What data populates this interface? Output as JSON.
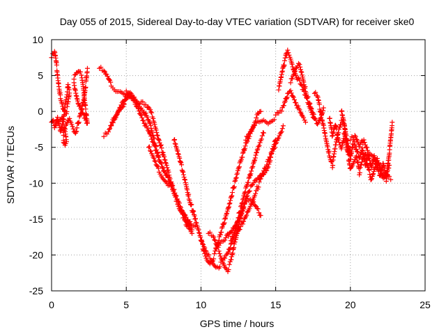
{
  "chart_data": {
    "type": "scatter",
    "title": "Day 055 of 2015, Sidereal Day-to-day VTEC variation (SDTVAR) for receiver ske0",
    "xlabel": "GPS time / hours",
    "ylabel": "SDTVAR / TECUs",
    "xlim": [
      0,
      25
    ],
    "ylim": [
      -25,
      10
    ],
    "xticks": [
      0,
      5,
      10,
      15,
      20,
      25
    ],
    "yticks": [
      -25,
      -20,
      -15,
      -10,
      -5,
      0,
      5,
      10
    ],
    "grid": true,
    "marker": "+",
    "colors": {
      "points": "#ff0000",
      "grid": "#a0a0a0",
      "frame": "#000000"
    },
    "series": [
      {
        "name": "s1",
        "x": [
          0.0,
          0.2,
          0.3,
          0.4,
          0.6,
          0.8,
          1.0,
          1.1,
          1.2,
          1.1,
          1.0,
          0.9,
          0.8,
          0.7,
          0.6,
          0.5,
          0.4,
          0.3,
          0.2,
          0.1,
          0.0
        ],
        "y": [
          7.5,
          8.2,
          7.0,
          5.0,
          2.0,
          0.5,
          0.0,
          1.0,
          2.5,
          3.5,
          2.0,
          1.0,
          -1.0,
          -2.0,
          -3.0,
          -2.0,
          -1.0,
          -1.5,
          -2.0,
          -1.0,
          -1.5
        ]
      },
      {
        "name": "s2",
        "x": [
          0.3,
          0.5,
          0.7,
          0.9,
          1.0,
          0.9,
          0.8,
          0.8,
          0.9,
          1.0,
          1.2,
          1.4,
          1.6,
          1.8,
          2.0,
          2.2,
          2.3,
          2.4
        ],
        "y": [
          -2.0,
          -1.5,
          -1.0,
          -2.5,
          -4.0,
          -4.5,
          -4.0,
          -3.0,
          -2.5,
          -2.0,
          -1.0,
          -2.0,
          -3.0,
          -1.5,
          0.0,
          2.0,
          4.0,
          6.0
        ]
      },
      {
        "name": "s3",
        "x": [
          1.5,
          1.6,
          1.8,
          2.0,
          2.1,
          2.2,
          2.3,
          2.4,
          2.2,
          2.0,
          1.8,
          1.6,
          1.5
        ],
        "y": [
          4.5,
          5.0,
          5.5,
          5.0,
          4.0,
          2.0,
          0.0,
          -2.0,
          -1.0,
          0.0,
          1.0,
          3.0,
          4.0
        ]
      },
      {
        "name": "s4",
        "x": [
          3.2,
          3.5,
          3.8,
          4.0,
          4.3,
          4.5,
          4.8,
          5.0,
          5.2,
          5.4,
          5.6,
          5.8,
          6.0,
          6.2,
          6.4,
          6.6,
          6.8,
          7.0,
          7.2,
          7.4,
          7.6,
          7.8,
          8.0,
          8.2,
          8.4,
          8.6,
          8.8,
          9.0,
          9.2,
          9.4
        ],
        "y": [
          6.0,
          5.5,
          4.5,
          3.5,
          3.0,
          3.0,
          2.8,
          2.5,
          2.0,
          1.5,
          1.0,
          0.5,
          -0.5,
          -1.5,
          -2.5,
          -3.5,
          -4.5,
          -5.5,
          -6.5,
          -7.5,
          -8.5,
          -9.5,
          -10.5,
          -11.5,
          -12.5,
          -13.5,
          -14.5,
          -15.5,
          -16.5,
          -17.0
        ]
      },
      {
        "name": "s5",
        "x": [
          3.5,
          3.8,
          4.0,
          4.2,
          4.4,
          4.6,
          4.8,
          5.0,
          5.2,
          5.4,
          5.6,
          5.8,
          6.0,
          6.2,
          6.4,
          6.6,
          6.8,
          7.0,
          7.2,
          7.4,
          7.6,
          7.8,
          8.0,
          8.2,
          8.4,
          8.6,
          8.8,
          9.0,
          9.2,
          9.4
        ],
        "y": [
          -3.5,
          -3.0,
          -2.0,
          -1.0,
          0.0,
          0.5,
          1.0,
          2.0,
          2.5,
          2.0,
          1.5,
          1.0,
          0.5,
          0.0,
          -1.0,
          -2.0,
          -3.5,
          -5.0,
          -6.5,
          -7.5,
          -8.5,
          -9.5,
          -10.5,
          -11.5,
          -12.5,
          -13.5,
          -14.0,
          -15.0,
          -16.0,
          -16.5
        ]
      },
      {
        "name": "s6",
        "x": [
          4.0,
          4.3,
          4.6,
          4.9,
          5.2,
          5.5,
          5.8,
          6.1,
          6.4,
          6.6,
          6.8,
          7.0,
          7.2,
          7.4,
          7.6,
          7.8,
          8.0,
          8.2,
          8.4,
          8.6,
          8.8,
          9.0,
          9.2,
          9.4,
          9.6
        ],
        "y": [
          -2.0,
          -1.0,
          0.5,
          1.5,
          2.5,
          2.0,
          1.5,
          1.0,
          0.5,
          0.0,
          -1.0,
          -2.5,
          -4.0,
          -5.5,
          -7.0,
          -8.5,
          -10.0,
          -11.0,
          -12.0,
          -13.0,
          -14.0,
          -15.0,
          -15.5,
          -16.0,
          -16.0
        ]
      },
      {
        "name": "s7",
        "x": [
          6.5,
          6.8,
          7.0,
          7.2,
          7.4,
          7.6,
          7.8,
          8.0
        ],
        "y": [
          -5.0,
          -6.5,
          -7.5,
          -8.5,
          -9.0,
          -9.5,
          -10.0,
          -10.0
        ]
      },
      {
        "name": "s8",
        "x": [
          8.2,
          8.4,
          8.6,
          8.8,
          9.0,
          9.2,
          9.4,
          9.6
        ],
        "y": [
          -4.0,
          -5.5,
          -7.0,
          -8.5,
          -10.0,
          -12.0,
          -13.5,
          -15.0
        ]
      },
      {
        "name": "s9",
        "x": [
          9.6,
          9.8,
          10.0,
          10.2,
          10.4,
          10.6,
          10.8,
          11.0,
          11.2,
          11.4,
          11.6,
          11.8,
          12.0,
          12.2,
          12.4,
          12.6,
          12.8,
          13.0,
          13.2,
          13.4,
          13.6,
          13.8,
          14.0
        ],
        "y": [
          -15.0,
          -16.5,
          -18.0,
          -19.5,
          -20.5,
          -21.0,
          -20.5,
          -19.5,
          -18.0,
          -16.5,
          -15.0,
          -13.5,
          -12.0,
          -10.5,
          -9.0,
          -7.5,
          -6.0,
          -4.5,
          -3.5,
          -2.5,
          -1.5,
          -0.5,
          0.0
        ]
      },
      {
        "name": "s10",
        "x": [
          10.0,
          10.2,
          10.4,
          10.6,
          10.8,
          11.0,
          11.2,
          11.4,
          11.6,
          11.8,
          12.0,
          12.2,
          12.4,
          12.6,
          12.8,
          13.0,
          13.2,
          13.4,
          13.6,
          13.8,
          14.0,
          14.2
        ],
        "y": [
          -18.0,
          -19.0,
          -20.0,
          -20.5,
          -21.0,
          -21.5,
          -21.5,
          -21.0,
          -20.5,
          -20.0,
          -18.5,
          -17.0,
          -15.5,
          -14.0,
          -12.5,
          -11.0,
          -9.5,
          -8.0,
          -6.5,
          -5.0,
          -4.0,
          -3.0
        ]
      },
      {
        "name": "s11",
        "x": [
          10.5,
          10.8,
          11.0,
          11.2,
          11.4,
          11.6,
          11.8,
          12.0,
          12.2,
          12.4,
          12.6,
          12.8,
          13.0,
          13.2,
          13.4,
          13.6,
          13.8,
          14.0,
          14.2,
          14.4,
          14.6,
          14.8,
          15.0
        ],
        "y": [
          -17.0,
          -17.5,
          -18.5,
          -19.5,
          -20.5,
          -21.5,
          -22.0,
          -21.0,
          -19.0,
          -17.0,
          -15.0,
          -13.5,
          -12.0,
          -11.0,
          -10.5,
          -10.0,
          -9.5,
          -9.0,
          -8.5,
          -8.0,
          -7.0,
          -5.5,
          -4.0
        ]
      },
      {
        "name": "s12",
        "x": [
          11.0,
          11.3,
          11.6,
          11.9,
          12.2,
          12.5,
          12.8,
          13.1,
          13.4,
          13.7,
          14.0
        ],
        "y": [
          -19.0,
          -18.5,
          -18.0,
          -17.0,
          -16.0,
          -15.0,
          -13.5,
          -12.5,
          -12.5,
          -13.5,
          -14.5
        ]
      },
      {
        "name": "s13",
        "x": [
          12.0,
          12.3,
          12.6,
          12.9,
          13.2,
          13.5,
          13.8,
          14.1,
          14.4,
          14.7,
          15.0,
          15.3,
          15.5
        ],
        "y": [
          -18.0,
          -17.5,
          -16.5,
          -15.0,
          -13.5,
          -12.0,
          -10.5,
          -9.0,
          -7.5,
          -6.0,
          -4.5,
          -3.0,
          -2.0
        ]
      },
      {
        "name": "s14",
        "x": [
          13.0,
          13.3,
          13.6,
          13.9,
          14.2,
          14.5,
          14.8,
          15.1,
          15.4,
          15.6,
          15.8,
          16.0,
          16.2,
          16.4,
          16.6,
          16.8,
          17.0
        ],
        "y": [
          -4.0,
          -3.0,
          -2.0,
          -1.5,
          -1.0,
          -1.5,
          -1.0,
          -0.5,
          0.0,
          1.0,
          2.5,
          3.0,
          2.0,
          1.0,
          0.0,
          -1.0,
          -1.5
        ]
      },
      {
        "name": "s15",
        "x": [
          15.2,
          15.4,
          15.6,
          15.8,
          16.0,
          16.2,
          16.4,
          16.6,
          16.8,
          17.0,
          17.2,
          17.4,
          17.6
        ],
        "y": [
          3.0,
          5.0,
          7.0,
          8.5,
          7.5,
          6.0,
          5.0,
          4.0,
          3.0,
          2.0,
          1.0,
          0.0,
          -1.0
        ]
      },
      {
        "name": "s16",
        "x": [
          16.0,
          16.2,
          16.4,
          16.6,
          16.8,
          17.0,
          17.2,
          17.4,
          17.6,
          17.8,
          18.0,
          18.2
        ],
        "y": [
          4.0,
          5.0,
          6.0,
          6.5,
          5.0,
          3.0,
          1.5,
          0.0,
          -1.0,
          -2.0,
          -1.0,
          0.5
        ]
      },
      {
        "name": "s17",
        "x": [
          17.6,
          17.8,
          18.0,
          18.2,
          18.4,
          18.6,
          18.8,
          19.0,
          19.2,
          19.4,
          19.6,
          19.8,
          20.0
        ],
        "y": [
          2.5,
          2.0,
          0.0,
          -2.0,
          -4.0,
          -6.0,
          -7.5,
          -5.0,
          -3.0,
          -1.5,
          -2.0,
          -4.0,
          -6.0
        ]
      },
      {
        "name": "s18",
        "x": [
          18.6,
          18.8,
          19.0,
          19.2,
          19.4,
          19.6,
          19.8,
          20.0,
          20.2,
          20.4,
          20.6,
          20.8,
          21.0,
          21.2,
          21.4,
          21.6,
          21.8,
          22.0,
          22.2,
          22.4,
          22.6,
          22.8
        ],
        "y": [
          -1.0,
          -3.5,
          -2.0,
          -4.0,
          -5.0,
          -3.0,
          -4.5,
          -7.0,
          -4.0,
          -5.5,
          -6.5,
          -5.0,
          -7.5,
          -6.0,
          -8.0,
          -6.5,
          -8.0,
          -9.0,
          -7.0,
          -9.5,
          -6.0,
          -1.5
        ]
      },
      {
        "name": "s19",
        "x": [
          19.4,
          19.6,
          19.8,
          20.0,
          20.2,
          20.4,
          20.6,
          20.8,
          21.0,
          21.2,
          21.4,
          21.6,
          21.8,
          22.0,
          22.2,
          22.4,
          22.6
        ],
        "y": [
          0.0,
          -2.0,
          -5.5,
          -8.0,
          -7.0,
          -6.0,
          -8.5,
          -7.0,
          -6.0,
          -8.0,
          -9.5,
          -8.0,
          -6.5,
          -8.5,
          -9.5,
          -9.0,
          -7.5
        ]
      },
      {
        "name": "s20",
        "x": [
          20.0,
          20.3,
          20.6,
          20.9,
          21.2,
          21.5,
          21.8,
          22.1,
          22.4,
          22.7
        ],
        "y": [
          -4.0,
          -3.5,
          -5.0,
          -4.0,
          -5.5,
          -6.0,
          -7.0,
          -8.5,
          -9.0,
          -9.5
        ]
      }
    ]
  }
}
